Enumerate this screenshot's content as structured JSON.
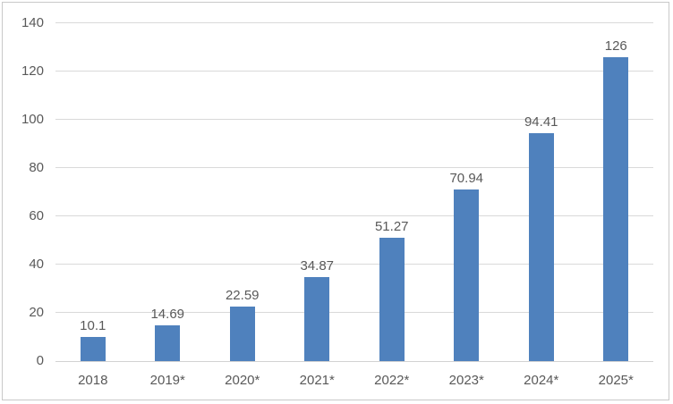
{
  "chart_data": {
    "type": "bar",
    "categories": [
      "2018",
      "2019*",
      "2020*",
      "2021*",
      "2022*",
      "2023*",
      "2024*",
      "2025*"
    ],
    "values": [
      10.1,
      14.69,
      22.59,
      34.87,
      51.27,
      70.94,
      94.41,
      126
    ],
    "data_labels": [
      "10.1",
      "14.69",
      "22.59",
      "34.87",
      "51.27",
      "70.94",
      "94.41",
      "126"
    ],
    "title": "",
    "xlabel": "",
    "ylabel": "",
    "ylim": [
      0,
      140
    ],
    "yticks": [
      0,
      20,
      40,
      60,
      80,
      100,
      120,
      140
    ],
    "grid": true,
    "legend": false,
    "colors": {
      "bar_fill": "#4F81BD",
      "gridline": "#d9d9d9",
      "axis_line": "#d2d2d2",
      "text": "#595959",
      "frame_border": "#c9c9c9",
      "background": "#ffffff"
    }
  }
}
